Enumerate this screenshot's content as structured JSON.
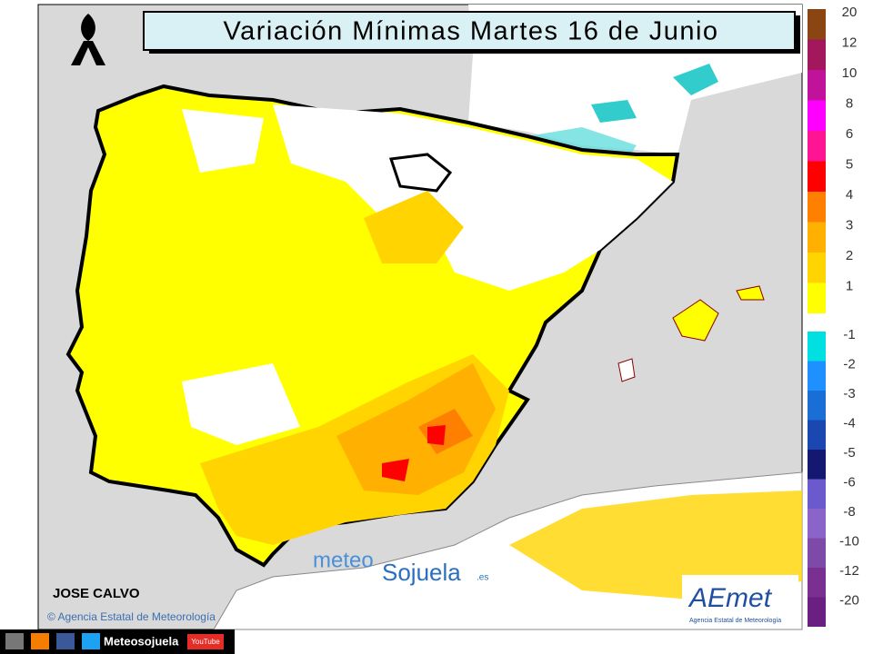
{
  "header": {
    "title": "Variación Mínimas Martes 16 de Junio"
  },
  "legend": {
    "positive": [
      {
        "label": "20",
        "color": "#8b4513"
      },
      {
        "label": "12",
        "color": "#a3185c"
      },
      {
        "label": "10",
        "color": "#c0129a"
      },
      {
        "label": "8",
        "color": "#ff00ff"
      },
      {
        "label": "6",
        "color": "#ff1493"
      },
      {
        "label": "5",
        "color": "#ff0000"
      },
      {
        "label": "4",
        "color": "#ff7f00"
      },
      {
        "label": "3",
        "color": "#ffb000"
      },
      {
        "label": "2",
        "color": "#ffd400"
      },
      {
        "label": "1",
        "color": "#ffff00"
      }
    ],
    "negative": [
      {
        "label": "-1",
        "color": "#00e0e0"
      },
      {
        "label": "-2",
        "color": "#1e90ff"
      },
      {
        "label": "-3",
        "color": "#1a6fd6"
      },
      {
        "label": "-4",
        "color": "#1a48b0"
      },
      {
        "label": "-5",
        "color": "#141870"
      },
      {
        "label": "-6",
        "color": "#6a5acd"
      },
      {
        "label": "-8",
        "color": "#8a64c8"
      },
      {
        "label": "-10",
        "color": "#7d4aa8"
      },
      {
        "label": "-12",
        "color": "#7a3090"
      },
      {
        "label": "-20",
        "color": "#6a2080"
      }
    ]
  },
  "credits": {
    "author": "JOSE CALVO",
    "copyright": "© Agencia Estatal de Meteorología",
    "logo_meteo": "meteo",
    "logo_sojuela": "Sojuela",
    "logo_domain": ".es",
    "aemet_logo": "AEmet",
    "aemet_subtitle": "Agencia Estatal de Meteorología"
  },
  "footer": {
    "social_name": "Meteosojuela",
    "youtube": "YouTube"
  }
}
